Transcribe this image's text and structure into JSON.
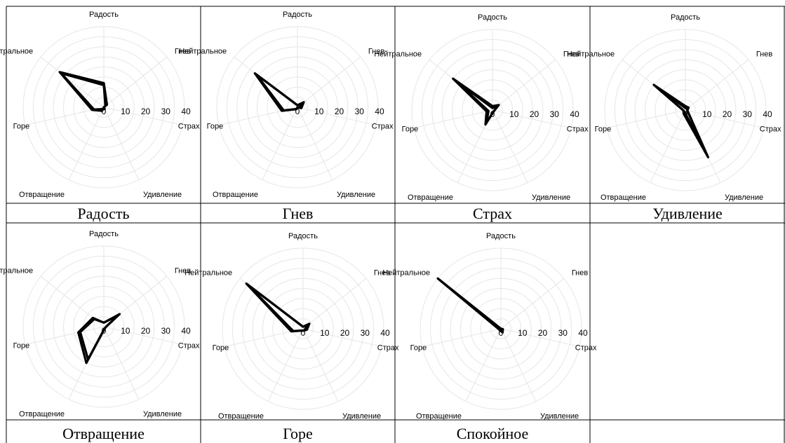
{
  "chart_data": [
    {
      "type": "radar",
      "title": "Радость",
      "categories": [
        "Радость",
        "Гнев",
        "Страх",
        "Удивление",
        "Отвращение",
        "Горе",
        "Нейтральное"
      ],
      "rticks": [
        "0",
        "10",
        "20",
        "30",
        "40"
      ],
      "rlim": [
        0,
        40
      ],
      "axis_color": "#e6e6e6",
      "line_color": "#000000",
      "series": [
        {
          "values": [
            12,
            2,
            0,
            0,
            2,
            6,
            28
          ]
        },
        {
          "values": [
            11,
            1,
            0,
            1,
            1,
            5,
            27
          ]
        }
      ]
    },
    {
      "type": "radar",
      "title": "Гнев",
      "categories": [
        "Радость",
        "Гнев",
        "Страх",
        "Удивление",
        "Отвращение",
        "Горе",
        "Нейтральное"
      ],
      "rticks": [
        "0",
        "10",
        "20",
        "30",
        "40"
      ],
      "rlim": [
        0,
        40
      ],
      "series": [
        {
          "values": [
            1,
            4,
            2,
            0,
            1,
            8,
            27
          ]
        },
        {
          "values": [
            1,
            3,
            1,
            0,
            1,
            7,
            26
          ]
        }
      ]
    },
    {
      "type": "radar",
      "title": "Страх",
      "categories": [
        "Радость",
        "Гнев",
        "Страх",
        "Удивление",
        "Отвращение",
        "Горе",
        "Нейтральное"
      ],
      "rticks": [
        "0",
        "10",
        "20",
        "30",
        "40"
      ],
      "rlim": [
        0,
        40
      ],
      "series": [
        {
          "values": [
            2,
            4,
            1,
            1,
            8,
            3,
            25
          ]
        },
        {
          "values": [
            1,
            3,
            1,
            1,
            7,
            2,
            24
          ]
        }
      ]
    },
    {
      "type": "radar",
      "title": "Удивление",
      "categories": [
        "Радость",
        "Гнев",
        "Страх",
        "Удивление",
        "Отвращение",
        "Горе",
        "Нейтральное"
      ],
      "rticks": [
        "0",
        "10",
        "20",
        "30",
        "40"
      ],
      "rlim": [
        0,
        40
      ],
      "series": [
        {
          "values": [
            2,
            2,
            1,
            26,
            2,
            1,
            20
          ]
        },
        {
          "values": [
            1,
            1,
            1,
            24,
            1,
            1,
            19
          ]
        }
      ]
    },
    {
      "type": "radar",
      "title": "Отвращение",
      "categories": [
        "Радость",
        "Гнев",
        "Страх",
        "Удивление",
        "Отвращение",
        "Горе",
        "Нейтральное"
      ],
      "rticks": [
        "0",
        "10",
        "20",
        "30",
        "40"
      ],
      "rlim": [
        0,
        40
      ],
      "series": [
        {
          "values": [
            2,
            10,
            1,
            1,
            20,
            13,
            7
          ]
        },
        {
          "values": [
            2,
            9,
            1,
            1,
            18,
            12,
            6
          ]
        }
      ]
    },
    {
      "type": "radar",
      "title": "Горе",
      "categories": [
        "Радость",
        "Гнев",
        "Страх",
        "Удивление",
        "Отвращение",
        "Горе",
        "Нейтральное"
      ],
      "rticks": [
        "0",
        "10",
        "20",
        "30",
        "40"
      ],
      "rlim": [
        0,
        40
      ],
      "series": [
        {
          "values": [
            1,
            4,
            2,
            1,
            1,
            6,
            36
          ]
        },
        {
          "values": [
            1,
            3,
            1,
            1,
            1,
            5,
            35
          ]
        }
      ]
    },
    {
      "type": "radar",
      "title": "Спокойное",
      "categories": [
        "Радость",
        "Гнев",
        "Страх",
        "Удивление",
        "Отвращение",
        "Горе",
        "Нейтральное"
      ],
      "rticks": [
        "0",
        "10",
        "20",
        "30",
        "40"
      ],
      "rlim": [
        0,
        40
      ],
      "series": [
        {
          "values": [
            0,
            0,
            1,
            2,
            1,
            1,
            40
          ]
        },
        {
          "values": [
            0,
            0,
            1,
            1,
            1,
            1,
            39
          ]
        }
      ]
    }
  ]
}
